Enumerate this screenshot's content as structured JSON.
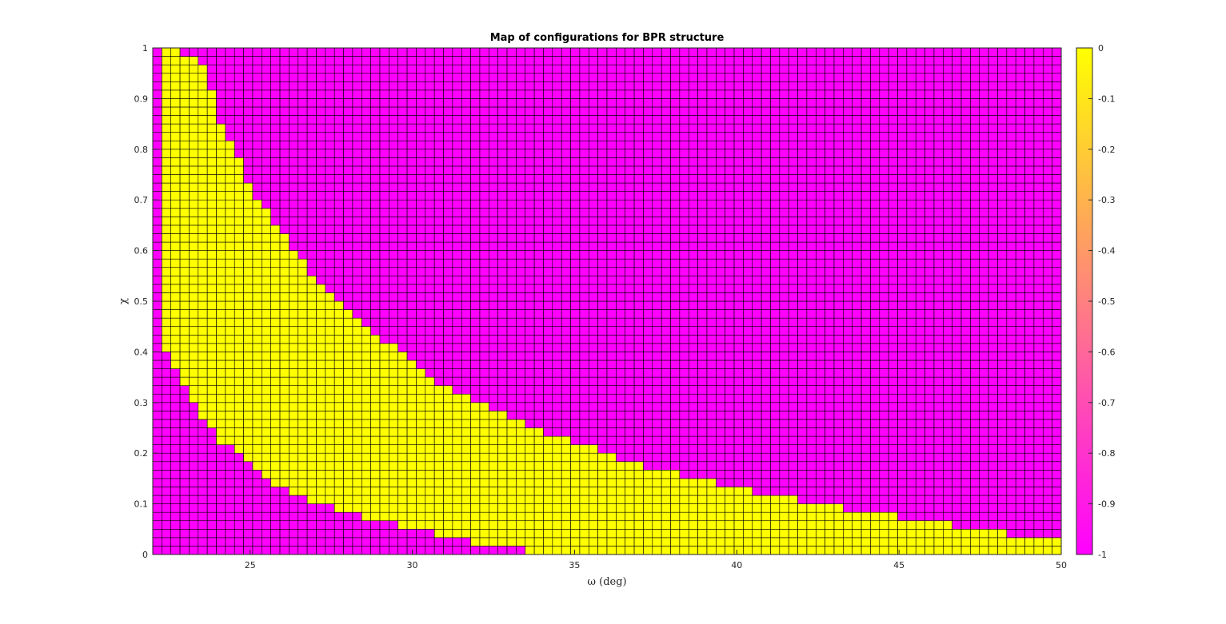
{
  "chart_data": {
    "type": "heatmap",
    "title": "Map of configurations for BPR structure",
    "xlabel": "ω (deg)",
    "ylabel": "χ",
    "xlim": [
      22,
      50
    ],
    "ylim": [
      0,
      1
    ],
    "x_ticks": [
      "25",
      "30",
      "35",
      "40",
      "45",
      "50"
    ],
    "y_ticks": [
      "0",
      "0.1",
      "0.2",
      "0.3",
      "0.4",
      "0.5",
      "0.6",
      "0.7",
      "0.8",
      "0.9",
      "1"
    ],
    "grid_columns": 100,
    "grid_rows": 60,
    "values_description_free": true,
    "color_low": "#ff00ff",
    "color_high": "#ffff00",
    "colorbar": {
      "limits": [
        -1,
        0
      ],
      "ticks": [
        "0",
        "-0.1",
        "-0.2",
        "-0.3",
        "-0.4",
        "-0.5",
        "-0.6",
        "-0.7",
        "-0.8",
        "-0.9",
        "-1"
      ]
    },
    "region_value_inside": 0,
    "region_value_outside": -1,
    "region_upper_boundary": [
      [
        22.3,
        1.0
      ],
      [
        23.5,
        0.98
      ],
      [
        24.0,
        0.87
      ],
      [
        25.0,
        0.73
      ],
      [
        26.0,
        0.63
      ],
      [
        27.0,
        0.55
      ],
      [
        28.0,
        0.48
      ],
      [
        29.0,
        0.43
      ],
      [
        30.0,
        0.38
      ],
      [
        31.0,
        0.33
      ],
      [
        32.0,
        0.3
      ],
      [
        33.0,
        0.27
      ],
      [
        34.0,
        0.24
      ],
      [
        35.0,
        0.22
      ],
      [
        36.0,
        0.2
      ],
      [
        37.0,
        0.18
      ],
      [
        38.0,
        0.16
      ],
      [
        39.0,
        0.145
      ],
      [
        40.0,
        0.13
      ],
      [
        41.0,
        0.12
      ],
      [
        42.0,
        0.105
      ],
      [
        43.0,
        0.095
      ],
      [
        44.0,
        0.085
      ],
      [
        45.0,
        0.075
      ],
      [
        46.0,
        0.065
      ],
      [
        47.0,
        0.055
      ],
      [
        48.0,
        0.045
      ],
      [
        49.0,
        0.035
      ],
      [
        50.0,
        0.025
      ]
    ],
    "region_lower_boundary": [
      [
        22.3,
        0.4
      ],
      [
        22.6,
        0.38
      ],
      [
        23.0,
        0.33
      ],
      [
        23.5,
        0.27
      ],
      [
        24.0,
        0.23
      ],
      [
        25.0,
        0.18
      ],
      [
        26.0,
        0.13
      ],
      [
        27.0,
        0.1
      ],
      [
        28.0,
        0.085
      ],
      [
        29.0,
        0.065
      ],
      [
        30.0,
        0.05
      ],
      [
        31.0,
        0.035
      ],
      [
        32.0,
        0.022
      ],
      [
        33.0,
        0.012
      ],
      [
        34.0,
        0.005
      ],
      [
        34.8,
        0.0
      ]
    ],
    "region_left_edge": 22.3
  }
}
